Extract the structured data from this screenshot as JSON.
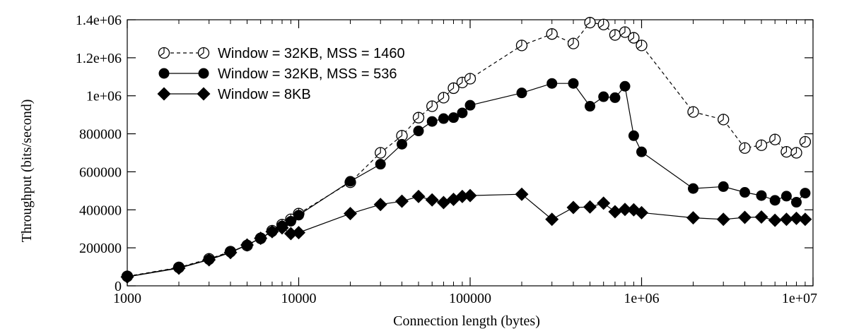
{
  "chart_data": {
    "type": "line",
    "xlabel": "Connection length (bytes)",
    "ylabel": "Throughput (bits/second)",
    "xscale": "log",
    "xlim": [
      1000,
      10000000
    ],
    "ylim": [
      0,
      1400000
    ],
    "xticks": [
      {
        "value": 1000,
        "label": "1000"
      },
      {
        "value": 10000,
        "label": "10000"
      },
      {
        "value": 100000,
        "label": "100000"
      },
      {
        "value": 1000000,
        "label": "1e+06"
      },
      {
        "value": 10000000,
        "label": "1e+07"
      }
    ],
    "yticks": [
      {
        "value": 0,
        "label": "0"
      },
      {
        "value": 200000,
        "label": "200000"
      },
      {
        "value": 400000,
        "label": "400000"
      },
      {
        "value": 600000,
        "label": "600000"
      },
      {
        "value": 800000,
        "label": "800000"
      },
      {
        "value": 1000000,
        "label": "1e+06"
      },
      {
        "value": 1200000,
        "label": "1.2e+06"
      },
      {
        "value": 1400000,
        "label": "1.4e+06"
      }
    ],
    "grid": false,
    "legend_position": "top-left",
    "series": [
      {
        "name": "Window = 32KB, MSS = 1460",
        "marker": "open-circle",
        "line": "dashed",
        "points": [
          [
            1000,
            50000
          ],
          [
            2000,
            97000
          ],
          [
            3000,
            142000
          ],
          [
            4000,
            180000
          ],
          [
            5000,
            212000
          ],
          [
            6000,
            250000
          ],
          [
            7000,
            290000
          ],
          [
            8000,
            322000
          ],
          [
            9000,
            350000
          ],
          [
            10000,
            380000
          ],
          [
            20000,
            545000
          ],
          [
            30000,
            700000
          ],
          [
            40000,
            790000
          ],
          [
            50000,
            885000
          ],
          [
            60000,
            945000
          ],
          [
            70000,
            990000
          ],
          [
            80000,
            1040000
          ],
          [
            90000,
            1070000
          ],
          [
            100000,
            1090000
          ],
          [
            200000,
            1265000
          ],
          [
            300000,
            1325000
          ],
          [
            400000,
            1275000
          ],
          [
            500000,
            1385000
          ],
          [
            600000,
            1375000
          ],
          [
            700000,
            1320000
          ],
          [
            800000,
            1335000
          ],
          [
            900000,
            1305000
          ],
          [
            1000000,
            1265000
          ],
          [
            2000000,
            915000
          ],
          [
            3000000,
            875000
          ],
          [
            4000000,
            725000
          ],
          [
            5000000,
            740000
          ],
          [
            6000000,
            770000
          ],
          [
            7000000,
            705000
          ],
          [
            8000000,
            700000
          ],
          [
            9000000,
            758000
          ]
        ]
      },
      {
        "name": "Window = 32KB, MSS = 536",
        "marker": "filled-circle",
        "line": "solid",
        "points": [
          [
            1000,
            48000
          ],
          [
            2000,
            95000
          ],
          [
            3000,
            138000
          ],
          [
            4000,
            178000
          ],
          [
            5000,
            215000
          ],
          [
            6000,
            252000
          ],
          [
            7000,
            285000
          ],
          [
            8000,
            315000
          ],
          [
            9000,
            340000
          ],
          [
            10000,
            372000
          ],
          [
            20000,
            550000
          ],
          [
            30000,
            640000
          ],
          [
            40000,
            745000
          ],
          [
            50000,
            815000
          ],
          [
            60000,
            865000
          ],
          [
            70000,
            880000
          ],
          [
            80000,
            885000
          ],
          [
            90000,
            910000
          ],
          [
            100000,
            950000
          ],
          [
            200000,
            1015000
          ],
          [
            300000,
            1065000
          ],
          [
            400000,
            1065000
          ],
          [
            500000,
            945000
          ],
          [
            600000,
            995000
          ],
          [
            700000,
            990000
          ],
          [
            800000,
            1050000
          ],
          [
            900000,
            790000
          ],
          [
            1000000,
            705000
          ],
          [
            2000000,
            512000
          ],
          [
            3000000,
            522000
          ],
          [
            4000000,
            492000
          ],
          [
            5000000,
            475000
          ],
          [
            6000000,
            450000
          ],
          [
            7000000,
            472000
          ],
          [
            8000000,
            440000
          ],
          [
            9000000,
            488000
          ]
        ]
      },
      {
        "name": "Window = 8KB",
        "marker": "filled-diamond",
        "line": "solid",
        "points": [
          [
            1000,
            47000
          ],
          [
            2000,
            93000
          ],
          [
            3000,
            137000
          ],
          [
            4000,
            175000
          ],
          [
            5000,
            215000
          ],
          [
            6000,
            250000
          ],
          [
            7000,
            285000
          ],
          [
            8000,
            305000
          ],
          [
            9000,
            275000
          ],
          [
            10000,
            280000
          ],
          [
            20000,
            380000
          ],
          [
            30000,
            428000
          ],
          [
            40000,
            445000
          ],
          [
            50000,
            470000
          ],
          [
            60000,
            452000
          ],
          [
            70000,
            438000
          ],
          [
            80000,
            455000
          ],
          [
            90000,
            470000
          ],
          [
            100000,
            475000
          ],
          [
            200000,
            482000
          ],
          [
            300000,
            350000
          ],
          [
            400000,
            412000
          ],
          [
            500000,
            415000
          ],
          [
            600000,
            435000
          ],
          [
            700000,
            390000
          ],
          [
            800000,
            402000
          ],
          [
            900000,
            400000
          ],
          [
            1000000,
            385000
          ],
          [
            2000000,
            358000
          ],
          [
            3000000,
            350000
          ],
          [
            4000000,
            360000
          ],
          [
            5000000,
            362000
          ],
          [
            6000000,
            345000
          ],
          [
            7000000,
            350000
          ],
          [
            8000000,
            355000
          ],
          [
            9000000,
            350000
          ]
        ]
      }
    ]
  }
}
